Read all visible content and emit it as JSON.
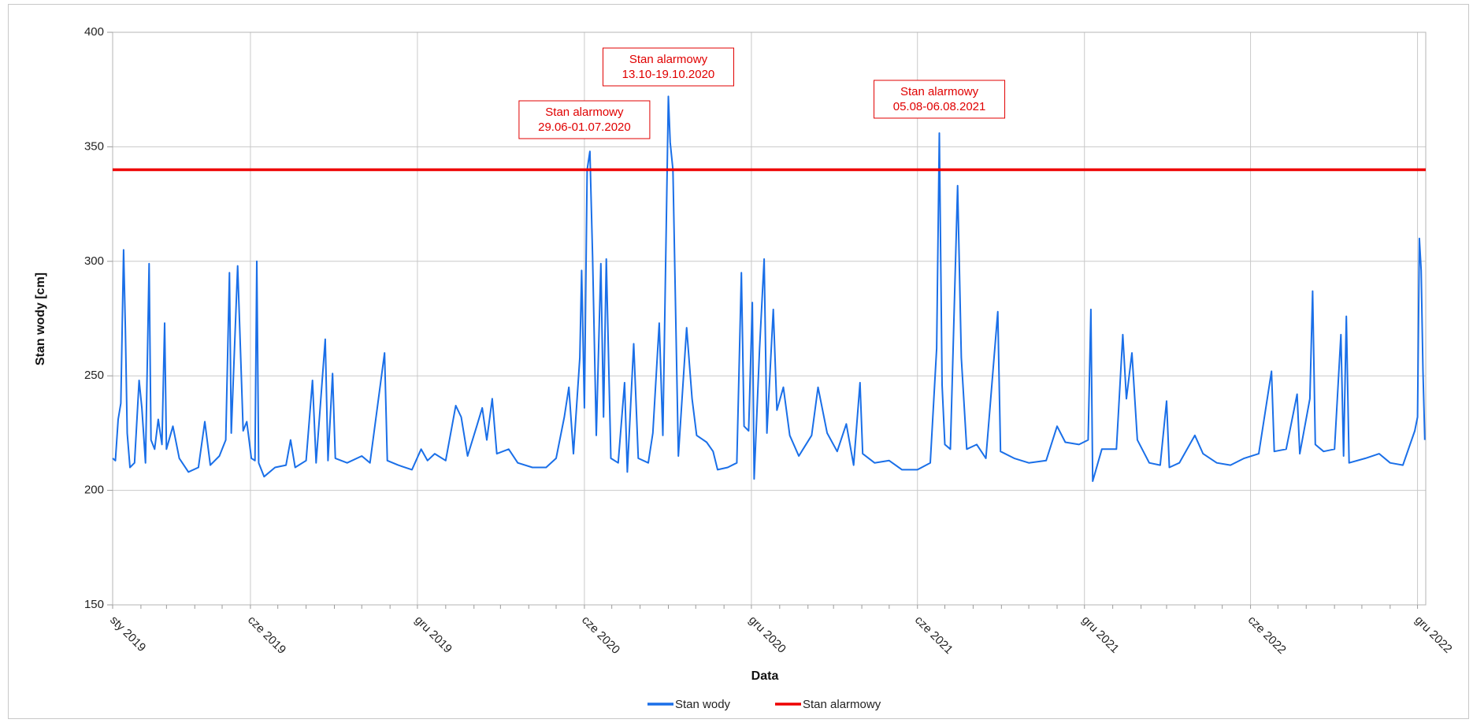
{
  "chart_data": {
    "type": "line",
    "xlabel": "Data",
    "ylabel": "Stan wody [cm]",
    "ylim": [
      150,
      400
    ],
    "yticks": [
      150,
      200,
      250,
      300,
      350,
      400
    ],
    "xrange": [
      "2019-01-01",
      "2022-12-10"
    ],
    "xticks": [
      {
        "date": "2019-01-01",
        "label": "sty 2019"
      },
      {
        "date": "2019-06-01",
        "label": "cze 2019"
      },
      {
        "date": "2019-12-01",
        "label": "gru 2019"
      },
      {
        "date": "2020-06-01",
        "label": "cze 2020"
      },
      {
        "date": "2020-12-01",
        "label": "gru 2020"
      },
      {
        "date": "2021-06-01",
        "label": "cze 2021"
      },
      {
        "date": "2021-12-01",
        "label": "gru 2021"
      },
      {
        "date": "2022-06-01",
        "label": "cze 2022"
      },
      {
        "date": "2022-12-01",
        "label": "gru 2022"
      }
    ],
    "grid": true,
    "legend_position": "bottom",
    "series": [
      {
        "name": "Stan wody",
        "color": "#1a6fe8",
        "points": [
          [
            "2019-01-01",
            214
          ],
          [
            "2019-01-04",
            213
          ],
          [
            "2019-01-07",
            231
          ],
          [
            "2019-01-10",
            238
          ],
          [
            "2019-01-13",
            305
          ],
          [
            "2019-01-15",
            270
          ],
          [
            "2019-01-17",
            225
          ],
          [
            "2019-01-20",
            210
          ],
          [
            "2019-01-25",
            212
          ],
          [
            "2019-01-30",
            248
          ],
          [
            "2019-02-02",
            236
          ],
          [
            "2019-02-06",
            212
          ],
          [
            "2019-02-10",
            299
          ],
          [
            "2019-02-12",
            222
          ],
          [
            "2019-02-16",
            218
          ],
          [
            "2019-02-20",
            231
          ],
          [
            "2019-02-24",
            220
          ],
          [
            "2019-02-27",
            273
          ],
          [
            "2019-03-01",
            218
          ],
          [
            "2019-03-08",
            228
          ],
          [
            "2019-03-15",
            214
          ],
          [
            "2019-03-25",
            208
          ],
          [
            "2019-04-05",
            210
          ],
          [
            "2019-04-12",
            230
          ],
          [
            "2019-04-18",
            211
          ],
          [
            "2019-04-28",
            215
          ],
          [
            "2019-05-05",
            222
          ],
          [
            "2019-05-09",
            295
          ],
          [
            "2019-05-11",
            225
          ],
          [
            "2019-05-18",
            298
          ],
          [
            "2019-05-21",
            262
          ],
          [
            "2019-05-24",
            226
          ],
          [
            "2019-05-28",
            230
          ],
          [
            "2019-06-02",
            214
          ],
          [
            "2019-06-06",
            213
          ],
          [
            "2019-06-08",
            300
          ],
          [
            "2019-06-10",
            212
          ],
          [
            "2019-06-16",
            206
          ],
          [
            "2019-06-28",
            210
          ],
          [
            "2019-07-10",
            211
          ],
          [
            "2019-07-15",
            222
          ],
          [
            "2019-07-20",
            210
          ],
          [
            "2019-08-01",
            213
          ],
          [
            "2019-08-08",
            248
          ],
          [
            "2019-08-12",
            212
          ],
          [
            "2019-08-22",
            266
          ],
          [
            "2019-08-25",
            213
          ],
          [
            "2019-08-30",
            251
          ],
          [
            "2019-09-02",
            214
          ],
          [
            "2019-09-15",
            212
          ],
          [
            "2019-10-01",
            215
          ],
          [
            "2019-10-10",
            212
          ],
          [
            "2019-10-26",
            260
          ],
          [
            "2019-10-29",
            213
          ],
          [
            "2019-11-10",
            211
          ],
          [
            "2019-11-25",
            209
          ],
          [
            "2019-12-05",
            218
          ],
          [
            "2019-12-12",
            213
          ],
          [
            "2019-12-20",
            216
          ],
          [
            "2020-01-01",
            213
          ],
          [
            "2020-01-12",
            237
          ],
          [
            "2020-01-18",
            232
          ],
          [
            "2020-01-25",
            215
          ],
          [
            "2020-02-04",
            228
          ],
          [
            "2020-02-10",
            236
          ],
          [
            "2020-02-15",
            222
          ],
          [
            "2020-02-21",
            240
          ],
          [
            "2020-02-26",
            216
          ],
          [
            "2020-03-10",
            218
          ],
          [
            "2020-03-20",
            212
          ],
          [
            "2020-04-05",
            210
          ],
          [
            "2020-04-20",
            210
          ],
          [
            "2020-05-01",
            214
          ],
          [
            "2020-05-10",
            232
          ],
          [
            "2020-05-15",
            245
          ],
          [
            "2020-05-20",
            216
          ],
          [
            "2020-05-27",
            258
          ],
          [
            "2020-05-29",
            296
          ],
          [
            "2020-06-01",
            236
          ],
          [
            "2020-06-04",
            340
          ],
          [
            "2020-06-07",
            348
          ],
          [
            "2020-06-10",
            302
          ],
          [
            "2020-06-14",
            224
          ],
          [
            "2020-06-19",
            299
          ],
          [
            "2020-06-22",
            232
          ],
          [
            "2020-06-25",
            301
          ],
          [
            "2020-06-30",
            214
          ],
          [
            "2020-07-08",
            212
          ],
          [
            "2020-07-15",
            247
          ],
          [
            "2020-07-18",
            208
          ],
          [
            "2020-07-25",
            264
          ],
          [
            "2020-07-30",
            214
          ],
          [
            "2020-08-10",
            212
          ],
          [
            "2020-08-15",
            225
          ],
          [
            "2020-08-22",
            273
          ],
          [
            "2020-08-26",
            224
          ],
          [
            "2020-09-01",
            372
          ],
          [
            "2020-09-03",
            352
          ],
          [
            "2020-09-06",
            340
          ],
          [
            "2020-09-12",
            215
          ],
          [
            "2020-09-17",
            246
          ],
          [
            "2020-09-21",
            271
          ],
          [
            "2020-09-27",
            240
          ],
          [
            "2020-10-02",
            224
          ],
          [
            "2020-10-13",
            221
          ],
          [
            "2020-10-20",
            217
          ],
          [
            "2020-10-25",
            209
          ],
          [
            "2020-11-05",
            210
          ],
          [
            "2020-11-15",
            212
          ],
          [
            "2020-11-20",
            295
          ],
          [
            "2020-11-23",
            228
          ],
          [
            "2020-11-28",
            226
          ],
          [
            "2020-12-02",
            282
          ],
          [
            "2020-12-04",
            205
          ],
          [
            "2020-12-10",
            262
          ],
          [
            "2020-12-15",
            301
          ],
          [
            "2020-12-18",
            225
          ],
          [
            "2020-12-25",
            279
          ],
          [
            "2020-12-29",
            235
          ],
          [
            "2021-01-05",
            245
          ],
          [
            "2021-01-12",
            224
          ],
          [
            "2021-01-22",
            215
          ],
          [
            "2021-02-05",
            224
          ],
          [
            "2021-02-12",
            245
          ],
          [
            "2021-02-22",
            225
          ],
          [
            "2021-03-05",
            217
          ],
          [
            "2021-03-15",
            229
          ],
          [
            "2021-03-23",
            211
          ],
          [
            "2021-03-30",
            247
          ],
          [
            "2021-04-02",
            216
          ],
          [
            "2021-04-15",
            212
          ],
          [
            "2021-05-01",
            213
          ],
          [
            "2021-05-15",
            209
          ],
          [
            "2021-06-01",
            209
          ],
          [
            "2021-06-15",
            212
          ],
          [
            "2021-06-22",
            262
          ],
          [
            "2021-06-25",
            356
          ],
          [
            "2021-06-28",
            246
          ],
          [
            "2021-07-01",
            220
          ],
          [
            "2021-07-07",
            218
          ],
          [
            "2021-07-15",
            333
          ],
          [
            "2021-07-19",
            258
          ],
          [
            "2021-07-25",
            218
          ],
          [
            "2021-08-05",
            220
          ],
          [
            "2021-08-15",
            214
          ],
          [
            "2021-08-28",
            278
          ],
          [
            "2021-08-31",
            217
          ],
          [
            "2021-09-15",
            214
          ],
          [
            "2021-10-01",
            212
          ],
          [
            "2021-10-20",
            213
          ],
          [
            "2021-11-01",
            228
          ],
          [
            "2021-11-10",
            221
          ],
          [
            "2021-11-25",
            220
          ],
          [
            "2021-12-05",
            222
          ],
          [
            "2021-12-08",
            279
          ],
          [
            "2021-12-10",
            204
          ],
          [
            "2021-12-20",
            218
          ],
          [
            "2022-01-05",
            218
          ],
          [
            "2022-01-12",
            268
          ],
          [
            "2022-01-16",
            240
          ],
          [
            "2022-01-22",
            260
          ],
          [
            "2022-01-28",
            222
          ],
          [
            "2022-02-10",
            212
          ],
          [
            "2022-02-22",
            211
          ],
          [
            "2022-03-01",
            239
          ],
          [
            "2022-03-04",
            210
          ],
          [
            "2022-03-15",
            212
          ],
          [
            "2022-04-01",
            224
          ],
          [
            "2022-04-10",
            216
          ],
          [
            "2022-04-25",
            212
          ],
          [
            "2022-05-10",
            211
          ],
          [
            "2022-05-25",
            214
          ],
          [
            "2022-06-10",
            216
          ],
          [
            "2022-06-24",
            252
          ],
          [
            "2022-06-27",
            217
          ],
          [
            "2022-07-10",
            218
          ],
          [
            "2022-07-22",
            242
          ],
          [
            "2022-07-25",
            216
          ],
          [
            "2022-08-05",
            240
          ],
          [
            "2022-08-08",
            287
          ],
          [
            "2022-08-11",
            220
          ],
          [
            "2022-08-20",
            217
          ],
          [
            "2022-09-01",
            218
          ],
          [
            "2022-09-08",
            268
          ],
          [
            "2022-09-11",
            215
          ],
          [
            "2022-09-14",
            276
          ],
          [
            "2022-09-17",
            212
          ],
          [
            "2022-10-05",
            214
          ],
          [
            "2022-10-20",
            216
          ],
          [
            "2022-11-01",
            212
          ],
          [
            "2022-11-15",
            211
          ],
          [
            "2022-11-28",
            226
          ],
          [
            "2022-12-01",
            232
          ],
          [
            "2022-12-03",
            310
          ],
          [
            "2022-12-05",
            296
          ],
          [
            "2022-12-07",
            252
          ],
          [
            "2022-12-09",
            222
          ]
        ]
      },
      {
        "name": "Stan alarmowy",
        "color": "#ee0000",
        "points": [
          [
            "2019-01-01",
            340
          ],
          [
            "2022-12-10",
            340
          ]
        ]
      }
    ],
    "annotations": [
      {
        "line1": "Stan alarmowy",
        "line2": "29.06-01.07.2020",
        "date": "2020-06-01"
      },
      {
        "line1": "Stan alarmowy",
        "line2": "13.10-19.10.2020",
        "date": "2020-09-01"
      },
      {
        "line1": "Stan alarmowy",
        "line2": "05.08-06.08.2021",
        "date": "2021-06-25"
      }
    ]
  }
}
